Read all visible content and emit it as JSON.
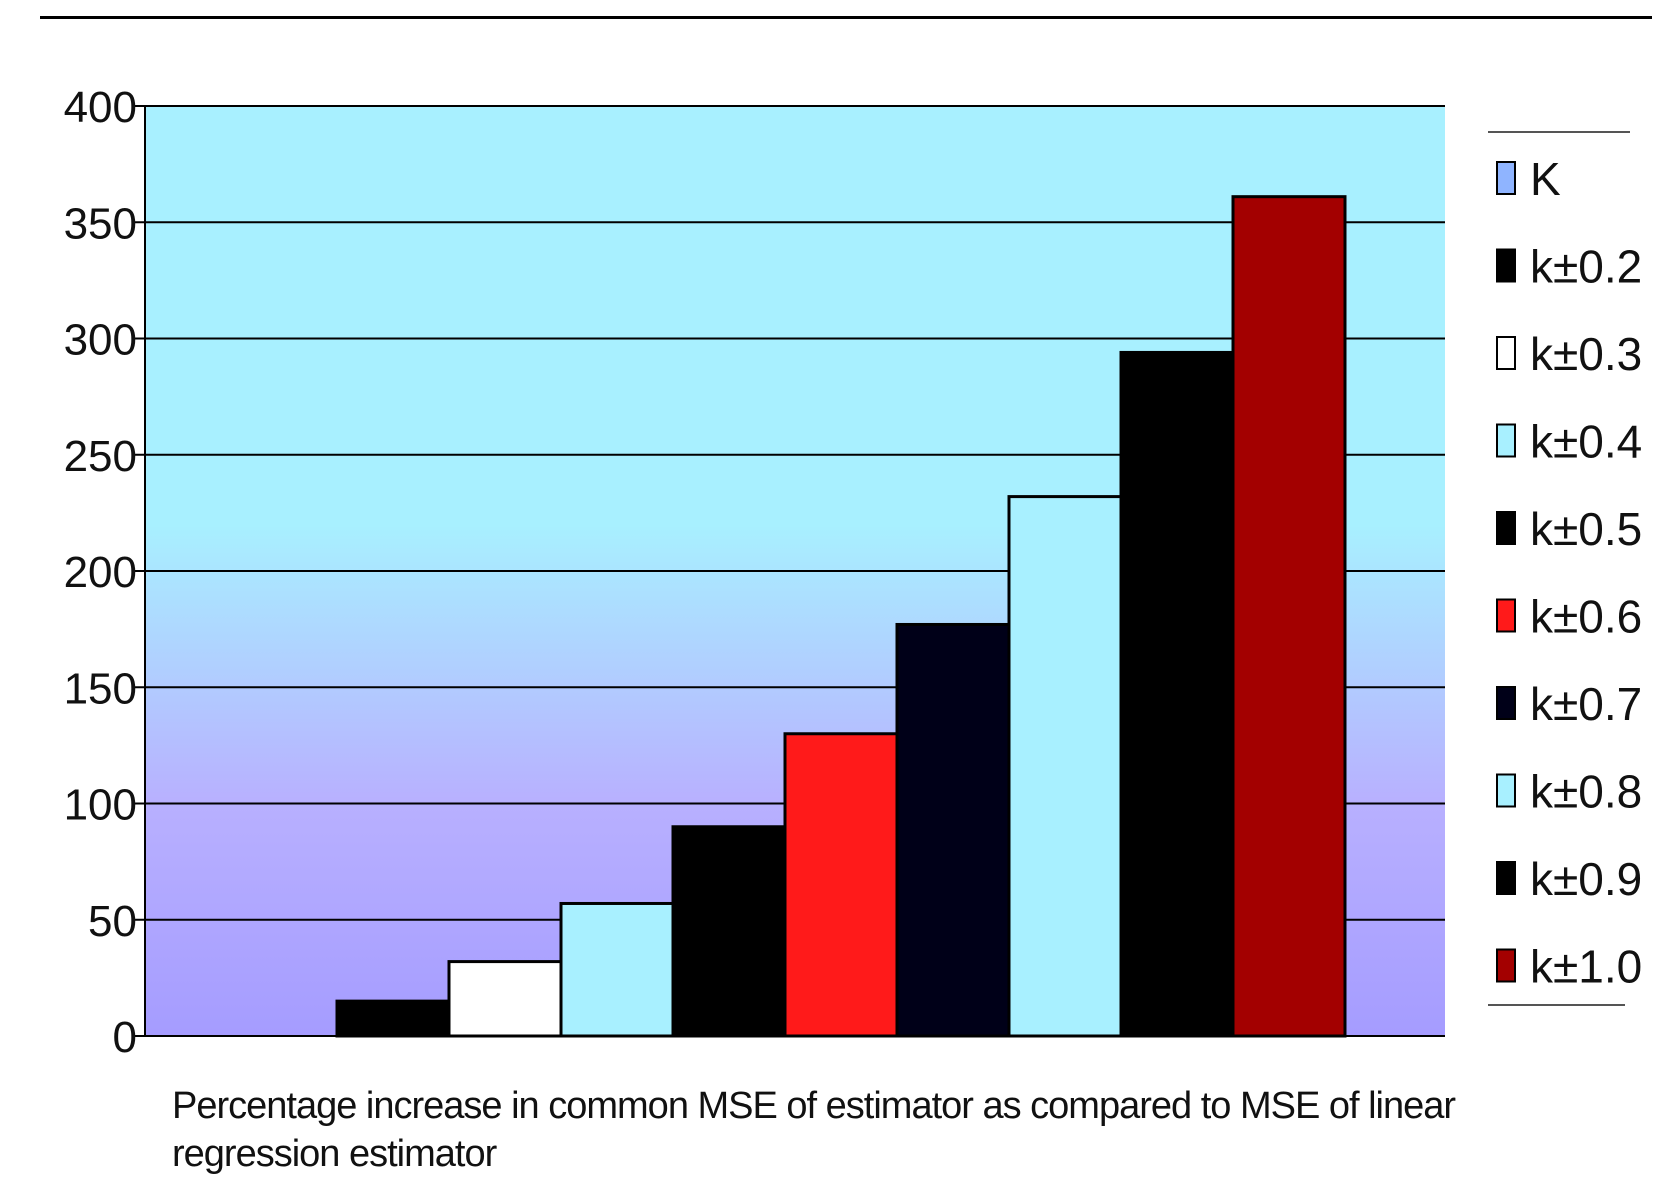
{
  "chart_data": {
    "type": "bar",
    "categories": [
      "K",
      "k±0.2",
      "k±0.3",
      "k±0.4",
      "k±0.5",
      "k±0.6",
      "k±0.7",
      "k±0.8",
      "k±0.9",
      "k±1.0"
    ],
    "values": [
      0,
      15,
      32,
      57,
      90,
      130,
      177,
      232,
      294,
      361
    ],
    "colors": [
      "#8fb4ff",
      "#000000",
      "#ffffff",
      "#a8f0ff",
      "#000000",
      "#ff1a1a",
      "#000018",
      "#a8f0ff",
      "#000000",
      "#a30000"
    ],
    "yticks": [
      0,
      50,
      100,
      150,
      200,
      250,
      300,
      350,
      400
    ],
    "ylim": [
      0,
      400
    ],
    "grid": true,
    "legend_position": "right",
    "caption": "Percentage increase in common MSE of estimator as compared to MSE of linear regression estimator"
  }
}
